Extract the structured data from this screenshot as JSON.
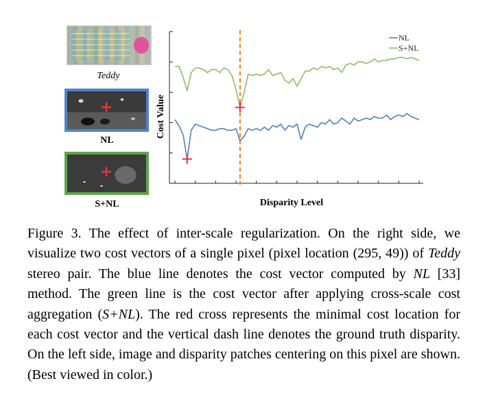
{
  "left_panel": {
    "image_label": "Teddy",
    "nl_label": "NL",
    "snl_label": "S+NL",
    "cross_symbol": "+"
  },
  "colors": {
    "nl": "#4f7ec0",
    "snl": "#8dbb66",
    "cross": "#e8313c",
    "ground_truth": "#f07f25",
    "nl_border": "#4f86c6",
    "snl_border": "#63a451"
  },
  "chart_data": {
    "type": "line",
    "title": "",
    "xlabel": "Disparity Level",
    "ylabel": "Cost Value",
    "xlim": [
      0,
      60
    ],
    "ylim": [
      0,
      1
    ],
    "legend_position": "top-right",
    "ground_truth_disparity": 16,
    "series": [
      {
        "name": "NL",
        "color": "#4f7ec0",
        "min_index": 3,
        "values": [
          0.42,
          0.38,
          0.32,
          0.16,
          0.35,
          0.39,
          0.38,
          0.37,
          0.36,
          0.35,
          0.35,
          0.36,
          0.36,
          0.35,
          0.35,
          0.36,
          0.28,
          0.31,
          0.36,
          0.35,
          0.36,
          0.35,
          0.37,
          0.35,
          0.38,
          0.37,
          0.39,
          0.35,
          0.38,
          0.37,
          0.39,
          0.29,
          0.37,
          0.39,
          0.38,
          0.37,
          0.4,
          0.39,
          0.42,
          0.39,
          0.4,
          0.43,
          0.41,
          0.39,
          0.43,
          0.41,
          0.42,
          0.43,
          0.42,
          0.44,
          0.43,
          0.43,
          0.45,
          0.42,
          0.44,
          0.45,
          0.44,
          0.46,
          0.44,
          0.43,
          0.42
        ]
      },
      {
        "name": "S+NL",
        "color": "#8dbb66",
        "min_index": 16,
        "values": [
          0.77,
          0.77,
          0.7,
          0.61,
          0.73,
          0.76,
          0.76,
          0.75,
          0.73,
          0.75,
          0.75,
          0.73,
          0.76,
          0.75,
          0.71,
          0.62,
          0.5,
          0.6,
          0.72,
          0.71,
          0.72,
          0.71,
          0.72,
          0.75,
          0.71,
          0.72,
          0.73,
          0.68,
          0.66,
          0.69,
          0.64,
          0.69,
          0.74,
          0.74,
          0.76,
          0.75,
          0.77,
          0.76,
          0.77,
          0.75,
          0.76,
          0.73,
          0.78,
          0.79,
          0.78,
          0.8,
          0.8,
          0.79,
          0.8,
          0.82,
          0.8,
          0.81,
          0.81,
          0.82,
          0.82,
          0.83,
          0.83,
          0.82,
          0.83,
          0.82,
          0.81
        ]
      }
    ]
  },
  "caption": {
    "prefix": "Figure 3. The effect of inter-scale regularization.  On the right side, we visualize two cost vectors of a single pixel (pixel location (295, 49)) of ",
    "teddy": "Teddy",
    "mid1": " stereo pair. The blue line denotes the cost vector computed by ",
    "nl": "NL",
    "mid2": " [33] method.  The green line is the cost vector after applying cross-scale cost aggregation (",
    "snl": "S+NL",
    "suffix": "). The red cross represents the minimal cost location for each cost vector and the vertical dash line denotes the ground truth disparity.  On the left side, image and disparity patches centering on this pixel are shown. (Best viewed in color.)"
  }
}
